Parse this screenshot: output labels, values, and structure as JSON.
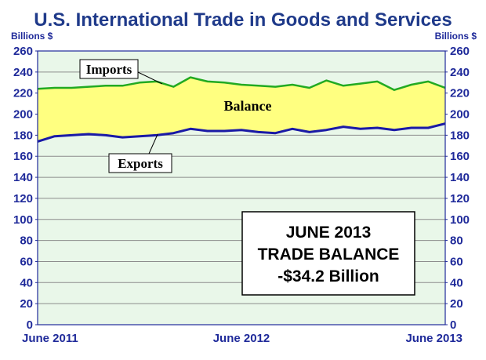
{
  "chart_data": {
    "type": "area",
    "title": "U.S. International Trade in Goods and Services",
    "ylabel_left": "Billions $",
    "ylabel_right": "Billions $",
    "ylim": [
      0,
      260
    ],
    "yticks": [
      0,
      20,
      40,
      60,
      80,
      100,
      120,
      140,
      160,
      180,
      200,
      220,
      240,
      260
    ],
    "xtick_labels": [
      "June 2011",
      "June 2012",
      "June 2013"
    ],
    "x": [
      "Jun 2011",
      "Jul 2011",
      "Aug 2011",
      "Sep 2011",
      "Oct 2011",
      "Nov 2011",
      "Dec 2011",
      "Jan 2012",
      "Feb 2012",
      "Mar 2012",
      "Apr 2012",
      "May 2012",
      "Jun 2012",
      "Jul 2012",
      "Aug 2012",
      "Sep 2012",
      "Oct 2012",
      "Nov 2012",
      "Dec 2012",
      "Jan 2013",
      "Feb 2013",
      "Mar 2013",
      "Apr 2013",
      "May 2013",
      "Jun 2013"
    ],
    "series": [
      {
        "name": "Imports",
        "color": "#22aa22",
        "values": [
          224,
          225,
          225,
          226,
          227,
          227,
          230,
          231,
          226,
          235,
          231,
          230,
          228,
          227,
          226,
          228,
          225,
          232,
          227,
          229,
          231,
          223,
          228,
          231,
          225
        ]
      },
      {
        "name": "Exports",
        "color": "#1a1aa6",
        "values": [
          174,
          179,
          180,
          181,
          180,
          178,
          179,
          180,
          182,
          186,
          184,
          184,
          185,
          183,
          182,
          186,
          183,
          185,
          188,
          186,
          187,
          185,
          187,
          187,
          191
        ]
      }
    ],
    "fill_label": "Balance",
    "fill_color": "#ffff80",
    "annotation_lines": [
      "JUNE 2013",
      "TRADE BALANCE",
      "-$34.2 Billion"
    ],
    "grid": true,
    "plot_background": "#e9f7e9"
  }
}
